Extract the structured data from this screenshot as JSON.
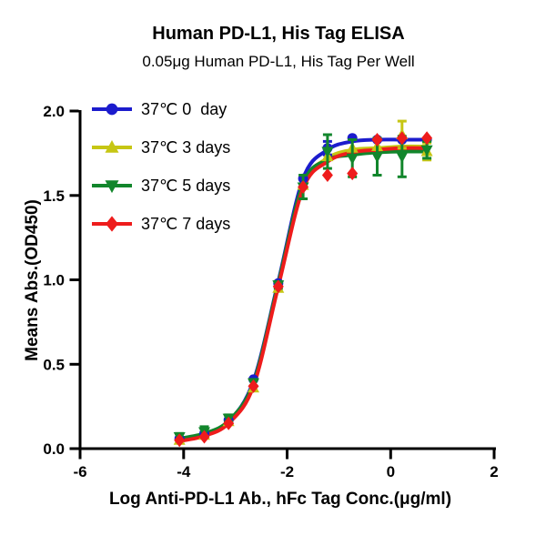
{
  "chart_data": {
    "type": "line",
    "title": "Human PD-L1, His Tag ELISA",
    "subtitle": "0.05μg Human PD-L1, His Tag Per Well",
    "xlabel": "Log Anti-PD-L1 Ab., hFc Tag Conc.(μg/ml)",
    "ylabel": "Means Abs.(OD450)",
    "xlim": [
      -6,
      2
    ],
    "ylim": [
      0,
      2
    ],
    "xticks": [
      -6,
      -4,
      -2,
      0,
      2
    ],
    "yticks": [
      0.0,
      0.5,
      1.0,
      1.5,
      2.0
    ],
    "grid": false,
    "legend_position": "inside-top-left",
    "axis_color": "#000000",
    "x": [
      -4.08,
      -3.6,
      -3.13,
      -2.65,
      -2.17,
      -1.69,
      -1.22,
      -0.74,
      -0.26,
      0.22,
      0.7
    ],
    "series": [
      {
        "name": "37℃ 0  day",
        "color": "#1c1ccd",
        "marker": "circle",
        "values": [
          0.06,
          0.09,
          0.17,
          0.41,
          0.98,
          1.6,
          1.78,
          1.84,
          1.83,
          1.83,
          1.83
        ],
        "curve": [
          0.055,
          0.085,
          0.16,
          0.4,
          0.99,
          1.6,
          1.77,
          1.82,
          1.83,
          1.83,
          1.83
        ],
        "sd": [
          0,
          0,
          0,
          0,
          0,
          0,
          0.04,
          0,
          0,
          0,
          0
        ]
      },
      {
        "name": "37℃ 3 days",
        "color": "#c6c614",
        "marker": "triangle-up",
        "values": [
          0.05,
          0.08,
          0.16,
          0.36,
          0.95,
          1.56,
          1.73,
          1.78,
          1.79,
          1.86,
          1.76
        ],
        "curve": [
          0.05,
          0.08,
          0.155,
          0.38,
          0.97,
          1.56,
          1.72,
          1.77,
          1.78,
          1.79,
          1.79
        ],
        "sd": [
          0,
          0,
          0,
          0,
          0,
          0,
          0,
          0,
          0,
          0.08,
          0.05
        ]
      },
      {
        "name": "37℃ 5 days",
        "color": "#12862c",
        "marker": "triangle-down",
        "values": [
          0.07,
          0.1,
          0.18,
          0.39,
          0.97,
          1.55,
          1.76,
          1.72,
          1.73,
          1.73,
          1.77
        ],
        "curve": [
          0.06,
          0.09,
          0.165,
          0.39,
          0.98,
          1.57,
          1.71,
          1.74,
          1.755,
          1.76,
          1.76
        ],
        "sd": [
          0.02,
          0.03,
          0.02,
          0.02,
          0.02,
          0.07,
          0.1,
          0.11,
          0.11,
          0.12,
          0.05
        ]
      },
      {
        "name": "37℃ 7 days",
        "color": "#ee1c1c",
        "marker": "diamond",
        "values": [
          0.05,
          0.07,
          0.15,
          0.37,
          0.96,
          1.55,
          1.62,
          1.63,
          1.83,
          1.84,
          1.84
        ],
        "curve": [
          0.045,
          0.075,
          0.15,
          0.37,
          0.96,
          1.54,
          1.7,
          1.755,
          1.77,
          1.78,
          1.78
        ],
        "sd": [
          0,
          0,
          0,
          0,
          0,
          0,
          0,
          0,
          0,
          0,
          0
        ]
      }
    ]
  }
}
